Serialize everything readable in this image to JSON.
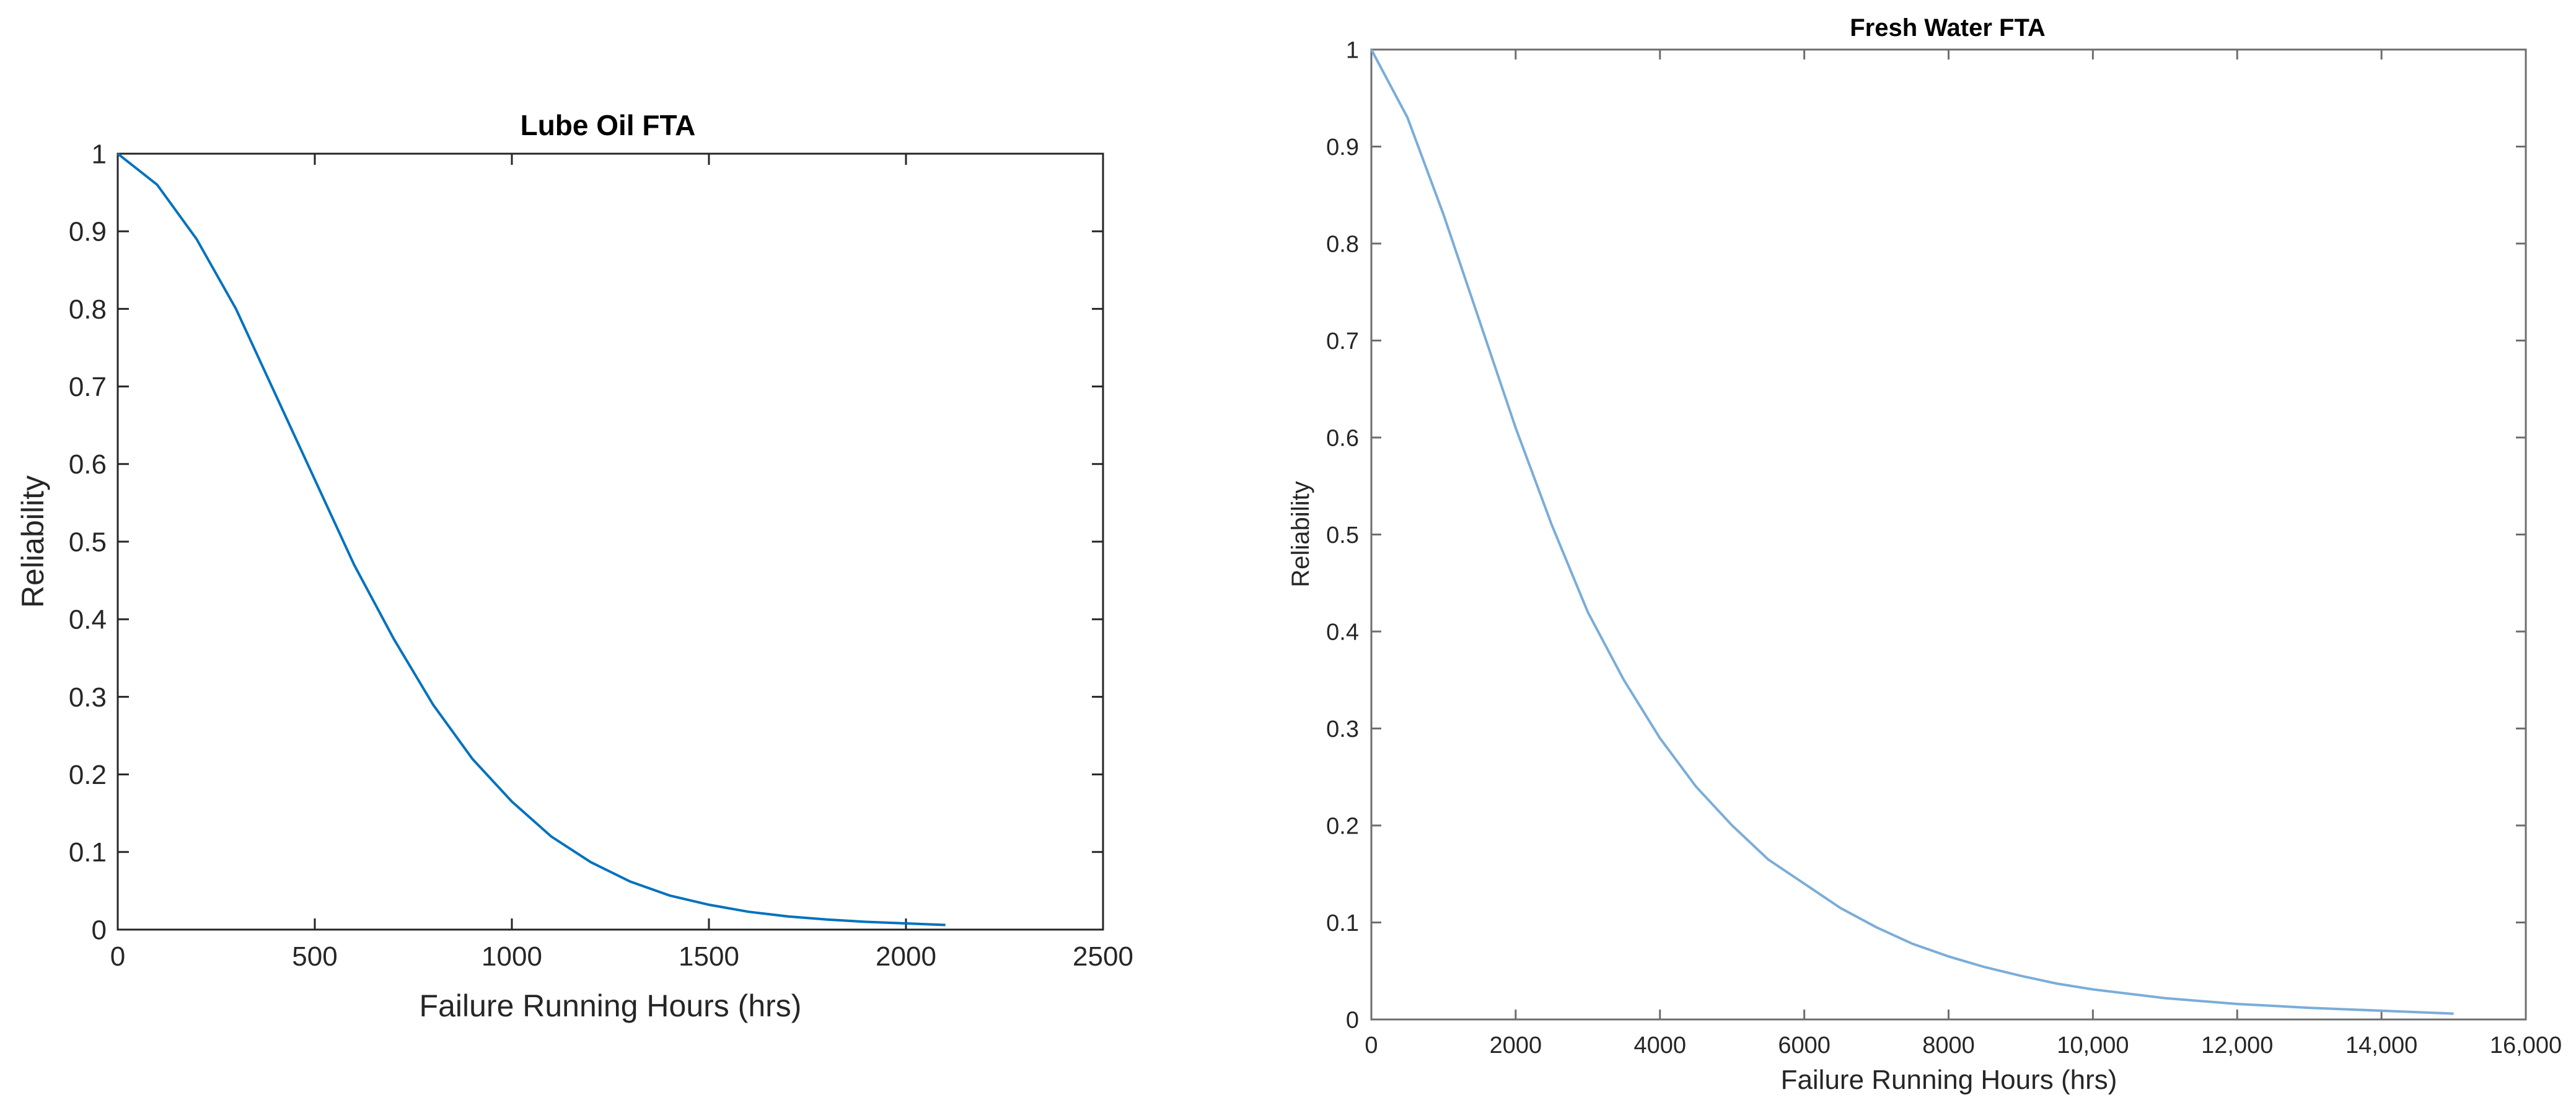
{
  "chart_data": [
    {
      "type": "line",
      "title": "Lube Oil FTA",
      "xlabel": "Failure Running Hours (hrs)",
      "ylabel": "Reliability",
      "xlim": [
        0,
        2500
      ],
      "ylim": [
        0,
        1
      ],
      "xticks": [
        0,
        500,
        1000,
        1500,
        2000,
        2500
      ],
      "xtick_labels": [
        "0",
        "500",
        "1000",
        "1500",
        "2000",
        "2500"
      ],
      "yticks": [
        0,
        0.1,
        0.2,
        0.3,
        0.4,
        0.5,
        0.6,
        0.7,
        0.8,
        0.9,
        1
      ],
      "ytick_labels": [
        "0",
        "0.1",
        "0.2",
        "0.3",
        "0.4",
        "0.5",
        "0.6",
        "0.7",
        "0.8",
        "0.9",
        "1"
      ],
      "grid": false,
      "color": "#0072bd",
      "series": [
        {
          "x": [
            0,
            100,
            200,
            300,
            400,
            500,
            600,
            700,
            800,
            900,
            1000,
            1100,
            1200,
            1300,
            1400,
            1500,
            1600,
            1700,
            1800,
            1900,
            2000,
            2100
          ],
          "y": [
            1.0,
            0.96,
            0.89,
            0.8,
            0.69,
            0.58,
            0.47,
            0.375,
            0.29,
            0.22,
            0.165,
            0.12,
            0.087,
            0.062,
            0.044,
            0.032,
            0.023,
            0.017,
            0.013,
            0.01,
            0.008,
            0.006
          ]
        }
      ]
    },
    {
      "type": "line",
      "title": "Fresh Water FTA",
      "xlabel": "Failure Running Hours (hrs)",
      "ylabel": "Reliability",
      "xlim": [
        0,
        16000
      ],
      "ylim": [
        0,
        1
      ],
      "xticks": [
        0,
        2000,
        4000,
        6000,
        8000,
        10000,
        12000,
        14000,
        16000
      ],
      "xtick_labels": [
        "0",
        "2000",
        "4000",
        "6000",
        "8000",
        "10,000",
        "12,000",
        "14,000",
        "16,000"
      ],
      "yticks": [
        0,
        0.1,
        0.2,
        0.3,
        0.4,
        0.5,
        0.6,
        0.7,
        0.8,
        0.9,
        1
      ],
      "ytick_labels": [
        "0",
        "0.1",
        "0.2",
        "0.3",
        "0.4",
        "0.5",
        "0.6",
        "0.7",
        "0.8",
        "0.9",
        "1"
      ],
      "grid": false,
      "color": "#7aadd9",
      "series": [
        {
          "x": [
            0,
            500,
            1000,
            1500,
            2000,
            2500,
            3000,
            3500,
            4000,
            4500,
            5000,
            5500,
            6000,
            6500,
            7000,
            7500,
            8000,
            8500,
            9000,
            9500,
            10000,
            11000,
            12000,
            13000,
            14000,
            15000
          ],
          "y": [
            1.0,
            0.93,
            0.83,
            0.72,
            0.61,
            0.51,
            0.42,
            0.35,
            0.29,
            0.24,
            0.2,
            0.165,
            0.14,
            0.115,
            0.095,
            0.078,
            0.065,
            0.054,
            0.045,
            0.037,
            0.031,
            0.022,
            0.016,
            0.012,
            0.009,
            0.006
          ]
        }
      ]
    }
  ]
}
